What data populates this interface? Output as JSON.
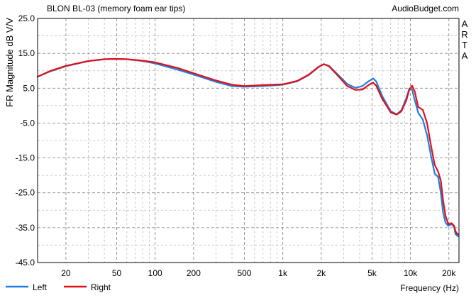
{
  "chart_data": {
    "type": "line",
    "title": "BLON BL-03 (memory foam ear tips)",
    "source": "AudioBudget.com",
    "side_label": [
      "A",
      "R",
      "T",
      "A"
    ],
    "xlabel": "Frequency (Hz)",
    "ylabel": "FR Magnitude dB V/V",
    "x_scale": "log",
    "xlim": [
      12,
      24000
    ],
    "ylim": [
      -45,
      25
    ],
    "grid": true,
    "legend_position": "bottom-left",
    "y_ticks": [
      {
        "value": 25,
        "label": "25.0"
      },
      {
        "value": 15,
        "label": "15.0"
      },
      {
        "value": 5,
        "label": "5.0"
      },
      {
        "value": -5,
        "label": "-5.0"
      },
      {
        "value": -15,
        "label": "-15.0"
      },
      {
        "value": -25,
        "label": "-25.0"
      },
      {
        "value": -35,
        "label": "-35.0"
      },
      {
        "value": -45,
        "label": "-45.0"
      }
    ],
    "x_ticks": [
      {
        "value": 20,
        "label": "20"
      },
      {
        "value": 50,
        "label": "50"
      },
      {
        "value": 100,
        "label": "100"
      },
      {
        "value": 200,
        "label": "200"
      },
      {
        "value": 500,
        "label": "500"
      },
      {
        "value": 1000,
        "label": "1k"
      },
      {
        "value": 2000,
        "label": "2k"
      },
      {
        "value": 5000,
        "label": "5k"
      },
      {
        "value": 10000,
        "label": "10k"
      },
      {
        "value": 20000,
        "label": "20k"
      }
    ],
    "series": [
      {
        "name": "Left",
        "color": "#1f7fe0",
        "points": [
          [
            12,
            8.3
          ],
          [
            15,
            9.8
          ],
          [
            20,
            11.3
          ],
          [
            30,
            12.8
          ],
          [
            40,
            13.3
          ],
          [
            50,
            13.4
          ],
          [
            60,
            13.3
          ],
          [
            80,
            12.8
          ],
          [
            100,
            12.1
          ],
          [
            150,
            10.3
          ],
          [
            200,
            8.9
          ],
          [
            300,
            6.8
          ],
          [
            400,
            5.6
          ],
          [
            500,
            5.4
          ],
          [
            700,
            5.6
          ],
          [
            1000,
            6.0
          ],
          [
            1300,
            7.0
          ],
          [
            1600,
            8.8
          ],
          [
            1900,
            11.0
          ],
          [
            2100,
            11.9
          ],
          [
            2300,
            11.4
          ],
          [
            2700,
            8.9
          ],
          [
            3200,
            6.2
          ],
          [
            3700,
            5.1
          ],
          [
            4200,
            5.6
          ],
          [
            4700,
            7.0
          ],
          [
            5100,
            7.8
          ],
          [
            5400,
            6.9
          ],
          [
            6000,
            2.8
          ],
          [
            7000,
            -1.6
          ],
          [
            7800,
            -2.5
          ],
          [
            8500,
            -1.3
          ],
          [
            9300,
            2.2
          ],
          [
            9800,
            4.9
          ],
          [
            10300,
            4.6
          ],
          [
            10800,
            1.6
          ],
          [
            11500,
            -2.0
          ],
          [
            12500,
            -4.0
          ],
          [
            13500,
            -8.5
          ],
          [
            14500,
            -14.5
          ],
          [
            15500,
            -19.5
          ],
          [
            16500,
            -20.5
          ],
          [
            17300,
            -25.0
          ],
          [
            18000,
            -30.5
          ],
          [
            18800,
            -33.5
          ],
          [
            19800,
            -34.5
          ],
          [
            21000,
            -34.0
          ],
          [
            22000,
            -34.8
          ],
          [
            22500,
            -36.8
          ],
          [
            23200,
            -37.3
          ],
          [
            23800,
            -37.5
          ]
        ]
      },
      {
        "name": "Right",
        "color": "#e0101a",
        "points": [
          [
            12,
            8.3
          ],
          [
            15,
            9.9
          ],
          [
            20,
            11.4
          ],
          [
            30,
            12.8
          ],
          [
            40,
            13.3
          ],
          [
            50,
            13.4
          ],
          [
            60,
            13.3
          ],
          [
            80,
            12.9
          ],
          [
            100,
            12.4
          ],
          [
            150,
            10.8
          ],
          [
            200,
            9.3
          ],
          [
            300,
            7.2
          ],
          [
            400,
            6.0
          ],
          [
            500,
            5.6
          ],
          [
            700,
            5.9
          ],
          [
            1000,
            6.1
          ],
          [
            1300,
            7.1
          ],
          [
            1600,
            8.9
          ],
          [
            1900,
            11.1
          ],
          [
            2100,
            11.9
          ],
          [
            2300,
            11.3
          ],
          [
            2700,
            8.6
          ],
          [
            3200,
            5.6
          ],
          [
            3700,
            4.5
          ],
          [
            4200,
            4.6
          ],
          [
            4700,
            5.9
          ],
          [
            5100,
            6.6
          ],
          [
            5400,
            5.7
          ],
          [
            6000,
            2.0
          ],
          [
            7000,
            -1.9
          ],
          [
            7800,
            -2.6
          ],
          [
            8500,
            -1.6
          ],
          [
            9300,
            1.6
          ],
          [
            9800,
            4.6
          ],
          [
            10300,
            5.7
          ],
          [
            10800,
            4.1
          ],
          [
            11500,
            -0.4
          ],
          [
            12500,
            -1.2
          ],
          [
            13500,
            -5.0
          ],
          [
            14500,
            -11.5
          ],
          [
            15500,
            -17.0
          ],
          [
            16500,
            -19.0
          ],
          [
            17300,
            -21.5
          ],
          [
            18000,
            -27.0
          ],
          [
            18800,
            -31.5
          ],
          [
            19800,
            -34.0
          ],
          [
            21000,
            -33.7
          ],
          [
            22000,
            -34.5
          ],
          [
            22500,
            -36.0
          ],
          [
            23200,
            -36.8
          ],
          [
            23800,
            -36.9
          ]
        ]
      }
    ]
  }
}
